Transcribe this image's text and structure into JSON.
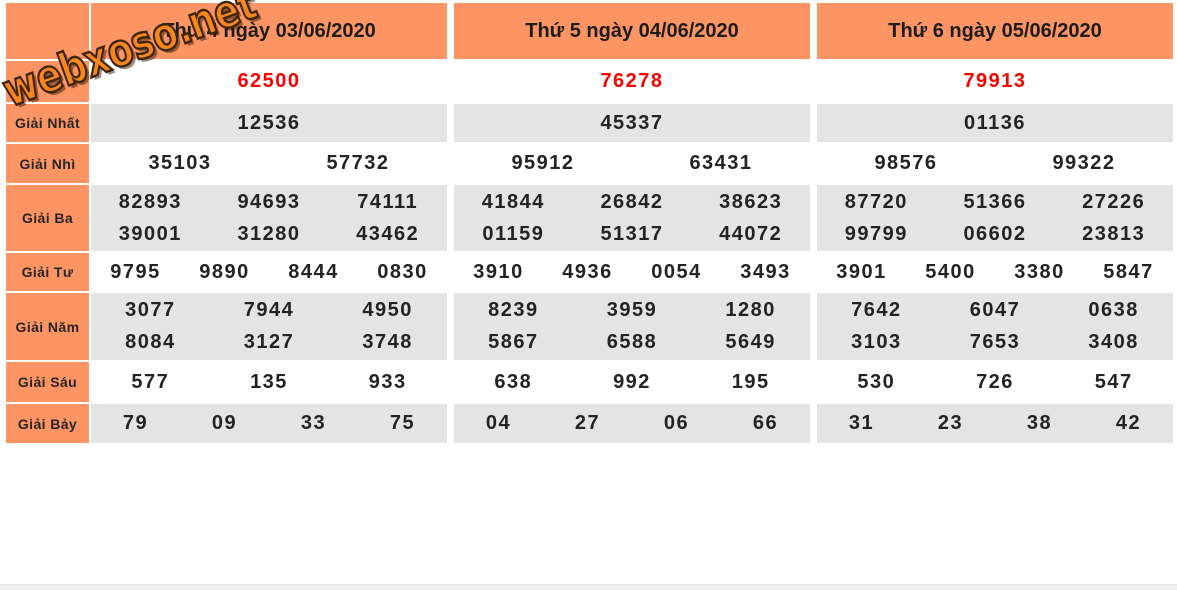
{
  "logo": {
    "text": "webxoso.net"
  },
  "colors": {
    "accent_orange": "#fc9463",
    "row_gray": "#e4e4e4",
    "special_red": "#fe0000"
  },
  "table": {
    "row_labels": [
      "",
      "Giải Nhất",
      "Giải Nhì",
      "Giải Ba",
      "Giải Tư",
      "Giải Năm",
      "Giải Sáu",
      "Giải Bảy"
    ],
    "columns": [
      {
        "header": "Thứ 4 ngày 03/06/2020",
        "prizes": [
          [
            [
              "62500"
            ]
          ],
          [
            [
              "12536"
            ]
          ],
          [
            [
              "35103",
              "57732"
            ]
          ],
          [
            [
              "82893",
              "94693",
              "74111"
            ],
            [
              "39001",
              "31280",
              "43462"
            ]
          ],
          [
            [
              "9795",
              "9890",
              "8444",
              "0830"
            ]
          ],
          [
            [
              "3077",
              "7944",
              "4950"
            ],
            [
              "8084",
              "3127",
              "3748"
            ]
          ],
          [
            [
              "577",
              "135",
              "933"
            ]
          ],
          [
            [
              "79",
              "09",
              "33",
              "75"
            ]
          ]
        ]
      },
      {
        "header": "Thứ 5 ngày 04/06/2020",
        "prizes": [
          [
            [
              "76278"
            ]
          ],
          [
            [
              "45337"
            ]
          ],
          [
            [
              "95912",
              "63431"
            ]
          ],
          [
            [
              "41844",
              "26842",
              "38623"
            ],
            [
              "01159",
              "51317",
              "44072"
            ]
          ],
          [
            [
              "3910",
              "4936",
              "0054",
              "3493"
            ]
          ],
          [
            [
              "8239",
              "3959",
              "1280"
            ],
            [
              "5867",
              "6588",
              "5649"
            ]
          ],
          [
            [
              "638",
              "992",
              "195"
            ]
          ],
          [
            [
              "04",
              "27",
              "06",
              "66"
            ]
          ]
        ]
      },
      {
        "header": "Thứ 6 ngày 05/06/2020",
        "prizes": [
          [
            [
              "79913"
            ]
          ],
          [
            [
              "01136"
            ]
          ],
          [
            [
              "98576",
              "99322"
            ]
          ],
          [
            [
              "87720",
              "51366",
              "27226"
            ],
            [
              "99799",
              "06602",
              "23813"
            ]
          ],
          [
            [
              "3901",
              "5400",
              "3380",
              "5847"
            ]
          ],
          [
            [
              "7642",
              "6047",
              "0638"
            ],
            [
              "3103",
              "7653",
              "3408"
            ]
          ],
          [
            [
              "530",
              "726",
              "547"
            ]
          ],
          [
            [
              "31",
              "23",
              "38",
              "42"
            ]
          ]
        ]
      }
    ]
  }
}
